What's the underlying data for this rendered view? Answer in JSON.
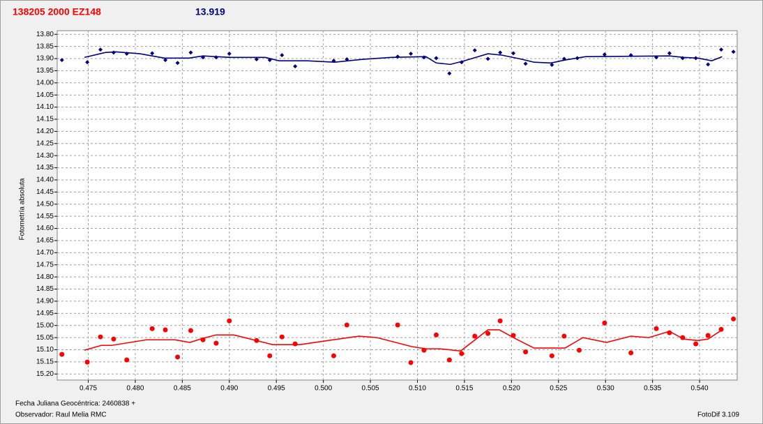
{
  "chart_data": {
    "type": "scatter",
    "title": "138205 2000 EZ148",
    "title_color": "#ff0000",
    "subtitle": "13.919",
    "subtitle_color": "#000080",
    "ylabel": "Fotometría absoluta",
    "annotations": [
      "Fecha Juliana Geocéntrica: 2460838 +",
      "Observador: Raul Melia RMC"
    ],
    "software": "FotoDif 3.109",
    "xlim": [
      0.4717,
      0.544
    ],
    "ylim": [
      13.785,
      15.225
    ],
    "y_inverted": true,
    "grid": true,
    "xticks": [
      0.475,
      {
        "value": 0.48,
        "label": "0.480"
      },
      0.485,
      {
        "value": 0.49,
        "label": "0.490"
      },
      0.495,
      {
        "value": 0.5,
        "label": "0.500"
      },
      0.505,
      {
        "value": 0.51,
        "label": "0.510"
      },
      0.515,
      {
        "value": 0.52,
        "label": "0.520"
      },
      0.525,
      {
        "value": 0.53,
        "label": "0.530"
      },
      0.535,
      {
        "value": 0.54,
        "label": "0.540"
      }
    ],
    "yticks": [
      {
        "value": 13.8,
        "label": "13.80"
      },
      13.85,
      {
        "value": 13.9,
        "label": "13.90"
      },
      13.95,
      {
        "value": 14.0,
        "label": "14.00"
      },
      14.05,
      {
        "value": 14.1,
        "label": "14.10"
      },
      14.15,
      {
        "value": 14.2,
        "label": "14.20"
      },
      14.25,
      {
        "value": 14.3,
        "label": "14.30"
      },
      14.35,
      {
        "value": 14.4,
        "label": "14.40"
      },
      14.45,
      {
        "value": 14.5,
        "label": "14.50"
      },
      14.55,
      {
        "value": 14.6,
        "label": "14.60"
      },
      14.65,
      {
        "value": 14.7,
        "label": "14.70"
      },
      14.75,
      {
        "value": 14.8,
        "label": "14.80"
      },
      14.85,
      {
        "value": 14.9,
        "label": "14.90"
      },
      14.95,
      {
        "value": 15.0,
        "label": "15.00"
      },
      15.05,
      {
        "value": 15.1,
        "label": "15.10"
      },
      15.15,
      {
        "value": 15.2,
        "label": "15.20"
      }
    ],
    "series": [
      {
        "color": "#000080",
        "marker": "diamond",
        "x": [
          0.4722,
          0.4749,
          0.4763,
          0.4777,
          0.4791,
          0.4818,
          0.4832,
          0.4845,
          0.4859,
          0.4872,
          0.4886,
          0.49,
          0.4929,
          0.4943,
          0.4956,
          0.497,
          0.5011,
          0.5025,
          0.5079,
          0.5093,
          0.5107,
          0.512,
          0.5134,
          0.5147,
          0.5161,
          0.5175,
          0.5188,
          0.5202,
          0.5215,
          0.5243,
          0.5256,
          0.527,
          0.5299,
          0.5327,
          0.5354,
          0.5368,
          0.5382,
          0.5396,
          0.5409,
          0.5423,
          0.5436
        ],
        "values": [
          13.906,
          13.915,
          13.863,
          13.875,
          13.88,
          13.878,
          13.906,
          13.918,
          13.875,
          13.895,
          13.895,
          13.88,
          13.903,
          13.906,
          13.886,
          13.932,
          13.909,
          13.903,
          13.892,
          13.88,
          13.895,
          13.898,
          13.961,
          13.915,
          13.866,
          13.901,
          13.875,
          13.878,
          13.921,
          13.926,
          13.901,
          13.898,
          13.883,
          13.886,
          13.895,
          13.878,
          13.898,
          13.898,
          13.924,
          13.863,
          13.872
        ]
      },
      {
        "color": "#000080",
        "marker": "line",
        "x": [
          0.4746,
          0.4768,
          0.4779,
          0.4805,
          0.4831,
          0.4857,
          0.4872,
          0.4901,
          0.4938,
          0.4953,
          0.4983,
          0.5012,
          0.5042,
          0.5072,
          0.5109,
          0.512,
          0.5135,
          0.515,
          0.5175,
          0.519,
          0.5209,
          0.5224,
          0.5242,
          0.5257,
          0.5279,
          0.5368,
          0.5383,
          0.5398,
          0.5413,
          0.5424
        ],
        "values": [
          13.895,
          13.875,
          13.872,
          13.88,
          13.898,
          13.898,
          13.889,
          13.895,
          13.895,
          13.909,
          13.909,
          13.915,
          13.903,
          13.895,
          13.892,
          13.918,
          13.924,
          13.909,
          13.88,
          13.886,
          13.901,
          13.915,
          13.918,
          13.906,
          13.892,
          13.889,
          13.895,
          13.898,
          13.909,
          13.892
        ]
      },
      {
        "color": "#ff0000",
        "marker": "circle",
        "x": [
          0.4722,
          0.4749,
          0.4763,
          0.4777,
          0.4791,
          0.4818,
          0.4832,
          0.4845,
          0.4859,
          0.4872,
          0.4886,
          0.49,
          0.4929,
          0.4943,
          0.4956,
          0.497,
          0.5011,
          0.5025,
          0.5079,
          0.5093,
          0.5107,
          0.512,
          0.5134,
          0.5147,
          0.5161,
          0.5175,
          0.5188,
          0.5202,
          0.5215,
          0.5243,
          0.5256,
          0.5272,
          0.5299,
          0.5327,
          0.5354,
          0.5368,
          0.5382,
          0.5396,
          0.5409,
          0.5423,
          0.5436
        ],
        "values": [
          15.119,
          15.151,
          15.047,
          15.056,
          15.142,
          15.013,
          15.018,
          15.13,
          15.021,
          15.059,
          15.073,
          14.981,
          15.062,
          15.125,
          15.047,
          15.076,
          15.125,
          14.998,
          14.998,
          15.153,
          15.102,
          15.039,
          15.142,
          15.116,
          15.044,
          15.033,
          14.981,
          15.041,
          15.109,
          15.125,
          15.044,
          15.102,
          14.99,
          15.113,
          15.013,
          15.03,
          15.05,
          15.076,
          15.041,
          15.016,
          14.973
        ]
      },
      {
        "color": "#ff0000",
        "marker": "line",
        "x": [
          0.4746,
          0.4764,
          0.4775,
          0.4812,
          0.4842,
          0.4858,
          0.4872,
          0.4886,
          0.4905,
          0.4946,
          0.4975,
          0.5005,
          0.5038,
          0.5057,
          0.5094,
          0.5109,
          0.5124,
          0.5146,
          0.5175,
          0.5187,
          0.5205,
          0.5224,
          0.5257,
          0.5276,
          0.5301,
          0.5327,
          0.5346,
          0.5368,
          0.5383,
          0.5398,
          0.5409,
          0.5424
        ],
        "values": [
          15.102,
          15.082,
          15.082,
          15.059,
          15.059,
          15.07,
          15.053,
          15.039,
          15.039,
          15.079,
          15.079,
          15.062,
          15.044,
          15.05,
          15.087,
          15.096,
          15.096,
          15.105,
          15.018,
          15.018,
          15.056,
          15.093,
          15.093,
          15.05,
          15.07,
          15.044,
          15.05,
          15.024,
          15.056,
          15.062,
          15.056,
          15.018
        ]
      }
    ]
  }
}
